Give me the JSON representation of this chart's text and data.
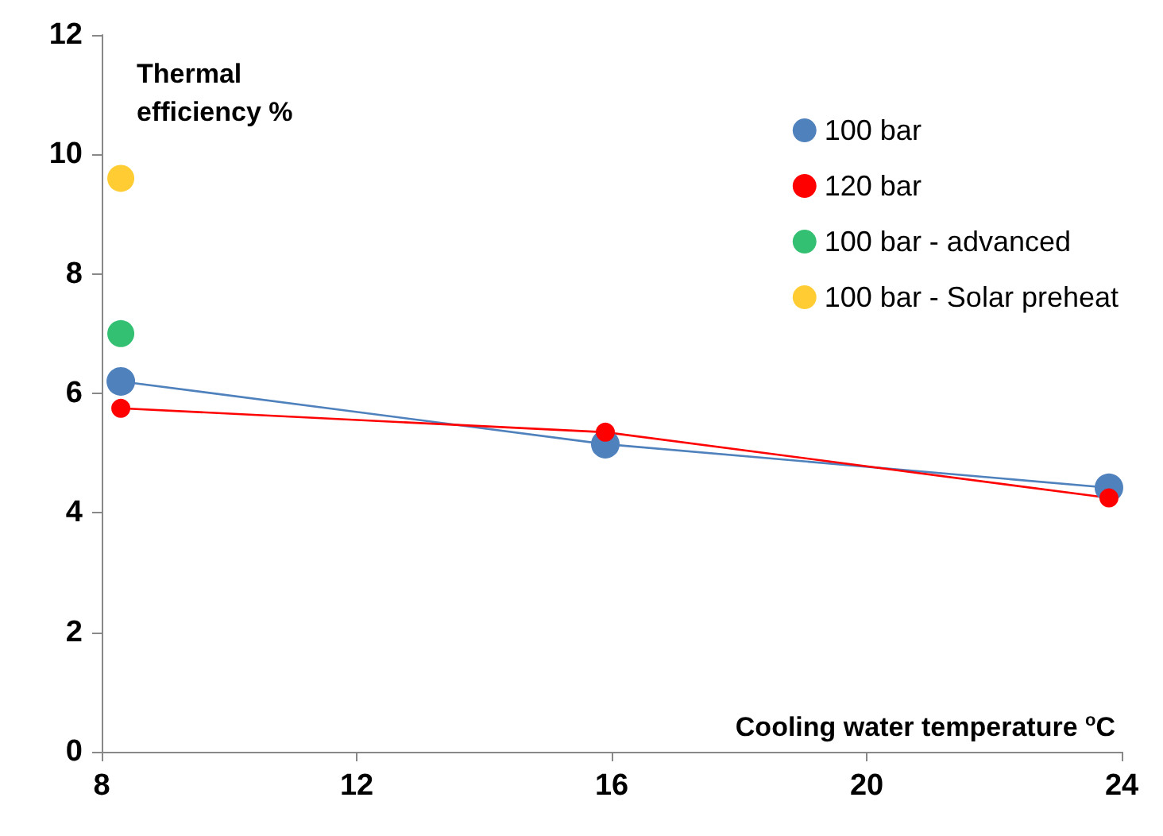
{
  "chart_data": {
    "type": "line",
    "xlabel": "Cooling water temperature $^{o}$C",
    "ylabel": "Thermal efficiency %",
    "xlim": [
      8,
      24
    ],
    "xticks": [
      8,
      12,
      16,
      20,
      24
    ],
    "ylim": [
      0,
      12
    ],
    "yticks": [
      0,
      2,
      4,
      6,
      8,
      10,
      12
    ],
    "grid": false,
    "legend": "top right",
    "marker": "circle",
    "line_style": "solid",
    "series": [
      {
        "name": "100 bar",
        "color": "#4f81bd",
        "x": [
          8.3,
          15.9,
          23.8
        ],
        "values": [
          6.2,
          5.15,
          4.42
        ]
      },
      {
        "name": "120 bar",
        "color": "#ff0000",
        "x": [
          8.3,
          15.9,
          23.8
        ],
        "values": [
          5.75,
          5.35,
          4.25
        ]
      },
      {
        "name": "100 bar - advanced",
        "type": "scatter",
        "color": "#00b050",
        "x": [
          8.3
        ],
        "values": [
          7.0
        ]
      },
      {
        "name": "100 bar - Solar preheat",
        "type": "scatter",
        "color": "#ffc000",
        "x": [
          8.3
        ],
        "values": [
          9.6
        ]
      }
    ]
  }
}
